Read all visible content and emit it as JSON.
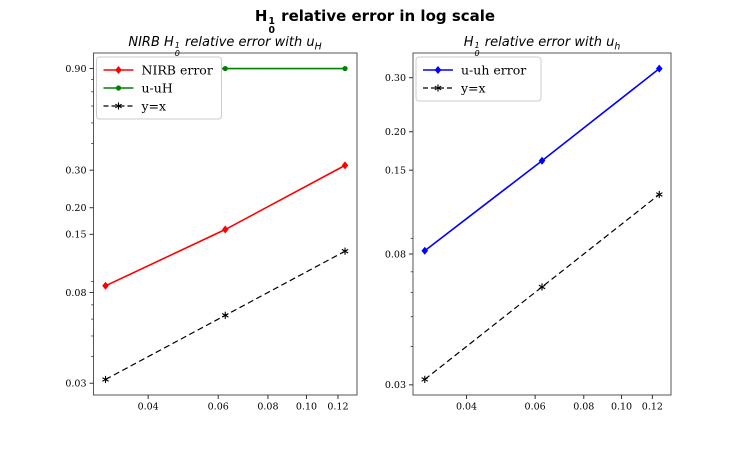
{
  "figure": {
    "title": {
      "h": "H",
      "sup": "1",
      "sub": "0",
      "rest": " relative error in log scale"
    },
    "background": "#ffffff"
  },
  "plots": [
    {
      "title": {
        "pre": "NIRB ",
        "h": "H",
        "sup": "1",
        "sub": "0",
        "mid": " relative error with ",
        "var": "u",
        "varsub": "H"
      }
    },
    {
      "title": {
        "pre": "",
        "h": "H",
        "sup": "1",
        "sub": "0",
        "mid": " relative error with ",
        "var": "u",
        "varsub": "h"
      }
    }
  ],
  "style": {
    "spine_color": "#555555",
    "tick_color": "#333333",
    "legend_border": "#cccccc",
    "legend_fill": "#ffffff"
  },
  "chart_data": [
    {
      "type": "line",
      "title": "NIRB H_0^1 relative error with u_H",
      "xscale": "log",
      "yscale": "log",
      "x": [
        0.03125,
        0.0625,
        0.125
      ],
      "series": [
        {
          "name": "NIRB error",
          "color": "#ff0000",
          "linestyle": "solid",
          "marker": "diamond",
          "values": [
            0.086,
            0.158,
            0.316
          ]
        },
        {
          "name": "u-uH",
          "color": "#008000",
          "linestyle": "solid",
          "marker": "circle",
          "values": [
            0.9,
            0.9,
            0.9
          ]
        },
        {
          "name": "y=x",
          "color": "#000000",
          "linestyle": "dashed",
          "marker": "star",
          "values": [
            0.03125,
            0.0625,
            0.125
          ]
        }
      ],
      "xticks": [
        0.04,
        0.06,
        0.08,
        0.1,
        0.12
      ],
      "yticks": [
        0.03,
        0.08,
        0.15,
        0.2,
        0.3,
        0.9
      ],
      "yminorticks": [
        0.04,
        0.05,
        0.06,
        0.07,
        0.09,
        0.4,
        0.5,
        0.6,
        0.7,
        0.8
      ],
      "xlim": [
        0.02915,
        0.13397
      ],
      "ylim": [
        0.02642,
        1.0646
      ],
      "grid": false,
      "legend_position": "upper left"
    },
    {
      "type": "line",
      "title": "H_0^1 relative error with u_h",
      "xscale": "log",
      "yscale": "log",
      "x": [
        0.03125,
        0.0625,
        0.125
      ],
      "series": [
        {
          "name": "u-uh error",
          "color": "#0000ff",
          "linestyle": "solid",
          "marker": "diamond",
          "values": [
            0.082,
            0.161,
            0.321
          ]
        },
        {
          "name": "y=x",
          "color": "#000000",
          "linestyle": "dashed",
          "marker": "star",
          "values": [
            0.03125,
            0.0625,
            0.125
          ]
        }
      ],
      "xticks": [
        0.04,
        0.06,
        0.08,
        0.1,
        0.12
      ],
      "yticks": [
        0.03,
        0.08,
        0.15,
        0.2,
        0.3
      ],
      "yminorticks": [
        0.04,
        0.05,
        0.06,
        0.07,
        0.09
      ],
      "xlim": [
        0.02915,
        0.13397
      ],
      "ylim": [
        0.0278,
        0.361
      ],
      "grid": false,
      "legend_position": "upper left"
    }
  ]
}
